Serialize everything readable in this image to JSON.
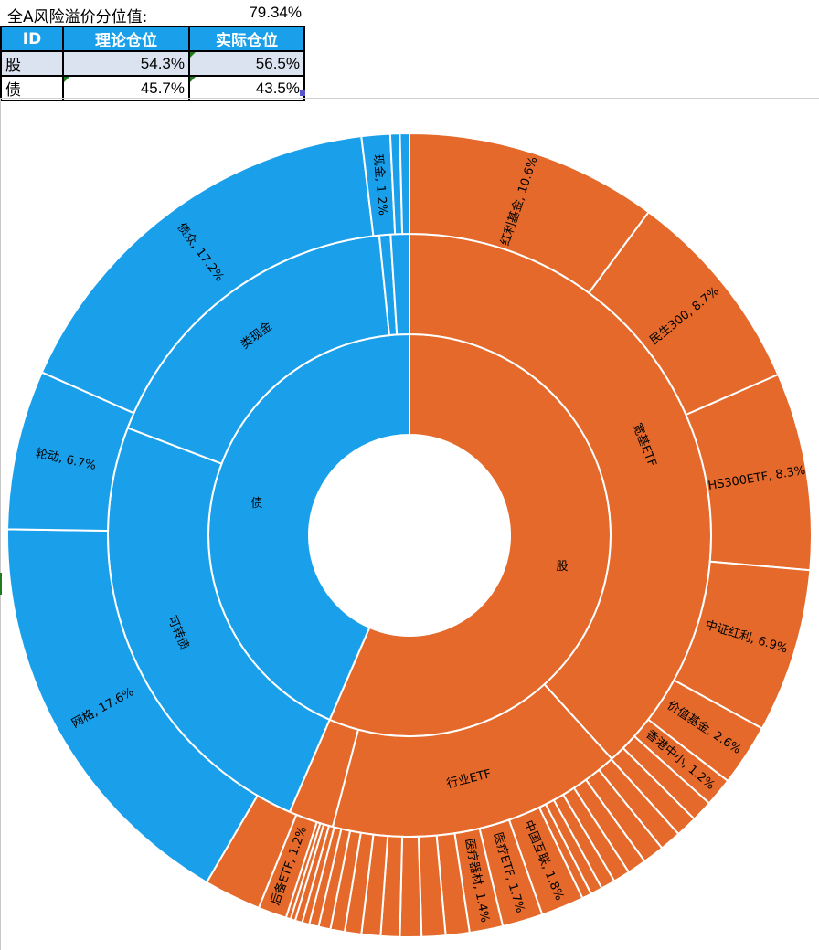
{
  "header": {
    "risk_label": "全A风险溢价分位值:",
    "risk_value": "79.34%"
  },
  "allocation_table": {
    "columns": [
      "ID",
      "理论仓位",
      "实际仓位"
    ],
    "rows": [
      {
        "id": "股",
        "theory": "54.3%",
        "actual": "56.5%"
      },
      {
        "id": "债",
        "theory": "45.7%",
        "actual": "43.5%"
      }
    ]
  },
  "colors": {
    "stock": "#e4692a",
    "bond": "#1a9fea",
    "header_fill": "#1aa0ea",
    "row_fill": "#dbe3f1"
  },
  "chart_data": {
    "type": "sunburst",
    "title": "",
    "labels": {
      "stock": "股",
      "bond": "债",
      "kuanji": "宽基ETF",
      "hangye": "行业ETF",
      "leixianjin": "类现金",
      "kezhuanzhai": "可转债",
      "hongli": "红利基金, 10.6%",
      "minsheng": "民生300, 8.7%",
      "hs300": "HS300ETF, 8.3%",
      "zzhongli": "中证红利, 6.9%",
      "jiazhi": "价值基金, 2.6%",
      "xianggang": "香港中小, 1.2%",
      "zhonghu": "中国互联, 1.8%",
      "yiliao": "医疗ETF, 1.7%",
      "yiliaoqc": "医疗器材, 1.4%",
      "houbei": "后备ETF, 1.2%",
      "xianjin": "现金, 1.2%",
      "weizhong": "债众, 17.2%",
      "lundong": "轮动, 6.7%",
      "wangge": "网格, 17.6%"
    },
    "inner": [
      {
        "key": "stock",
        "value": 56.5,
        "group": "stock"
      },
      {
        "key": "bond",
        "value": 43.5,
        "group": "bond"
      }
    ],
    "middle": [
      {
        "key": "kuanji",
        "value": 38.3,
        "group": "stock"
      },
      {
        "key": "hangye",
        "value": 15.8,
        "group": "stock"
      },
      {
        "key": null,
        "value": 2.4,
        "group": "stock"
      },
      {
        "key": "kezhuanzhai",
        "value": 24.3,
        "group": "bond"
      },
      {
        "key": "leixianjin",
        "value": 17.6,
        "group": "bond"
      },
      {
        "key": null,
        "value": 0.6,
        "group": "bond"
      },
      {
        "key": null,
        "value": 1.0,
        "group": "bond"
      }
    ],
    "outer": [
      {
        "key": "hongli",
        "value": 10.6,
        "group": "stock"
      },
      {
        "key": "minsheng",
        "value": 8.7,
        "group": "stock"
      },
      {
        "key": "hs300",
        "value": 8.3,
        "group": "stock"
      },
      {
        "key": "zzhongli",
        "value": 6.9,
        "group": "stock"
      },
      {
        "key": "jiazhi",
        "value": 2.6,
        "group": "stock"
      },
      {
        "key": "xianggang",
        "value": 1.2,
        "group": "stock"
      },
      {
        "key": null,
        "value": 0.9,
        "group": "stock"
      },
      {
        "key": null,
        "value": 0.9,
        "group": "stock"
      },
      {
        "key": null,
        "value": 0.9,
        "group": "stock"
      },
      {
        "key": null,
        "value": 0.9,
        "group": "stock"
      },
      {
        "key": null,
        "value": 0.8,
        "group": "stock"
      },
      {
        "key": null,
        "value": 0.7,
        "group": "stock"
      },
      {
        "key": null,
        "value": 0.6,
        "group": "stock"
      },
      {
        "key": null,
        "value": 0.5,
        "group": "stock"
      },
      {
        "key": null,
        "value": 0.4,
        "group": "stock"
      },
      {
        "key": "zhonghu",
        "value": 1.8,
        "group": "stock"
      },
      {
        "key": "yiliao",
        "value": 1.7,
        "group": "stock"
      },
      {
        "key": "yiliaoqc",
        "value": 1.4,
        "group": "stock"
      },
      {
        "key": null,
        "value": 1.0,
        "group": "stock"
      },
      {
        "key": null,
        "value": 1.0,
        "group": "stock"
      },
      {
        "key": null,
        "value": 0.9,
        "group": "stock"
      },
      {
        "key": null,
        "value": 0.8,
        "group": "stock"
      },
      {
        "key": null,
        "value": 0.8,
        "group": "stock"
      },
      {
        "key": null,
        "value": 0.7,
        "group": "stock"
      },
      {
        "key": null,
        "value": 0.6,
        "group": "stock"
      },
      {
        "key": null,
        "value": 0.5,
        "group": "stock"
      },
      {
        "key": null,
        "value": 0.4,
        "group": "stock"
      },
      {
        "key": null,
        "value": 0.3,
        "group": "stock"
      },
      {
        "key": null,
        "value": 0.3,
        "group": "stock"
      },
      {
        "key": null,
        "value": 0.2,
        "group": "stock"
      },
      {
        "key": null,
        "value": 0.2,
        "group": "stock"
      },
      {
        "key": "houbei",
        "value": 1.2,
        "group": "stock"
      },
      {
        "key": null,
        "value": 2.4,
        "group": "stock"
      },
      {
        "key": "wangge",
        "value": 17.6,
        "group": "bond"
      },
      {
        "key": "lundong",
        "value": 6.7,
        "group": "bond"
      },
      {
        "key": "weizhong",
        "value": 17.2,
        "group": "bond"
      },
      {
        "key": "xianjin",
        "value": 1.2,
        "group": "bond"
      },
      {
        "key": null,
        "value": 0.4,
        "group": "bond"
      },
      {
        "key": null,
        "value": 0.4,
        "group": "bond"
      }
    ]
  }
}
